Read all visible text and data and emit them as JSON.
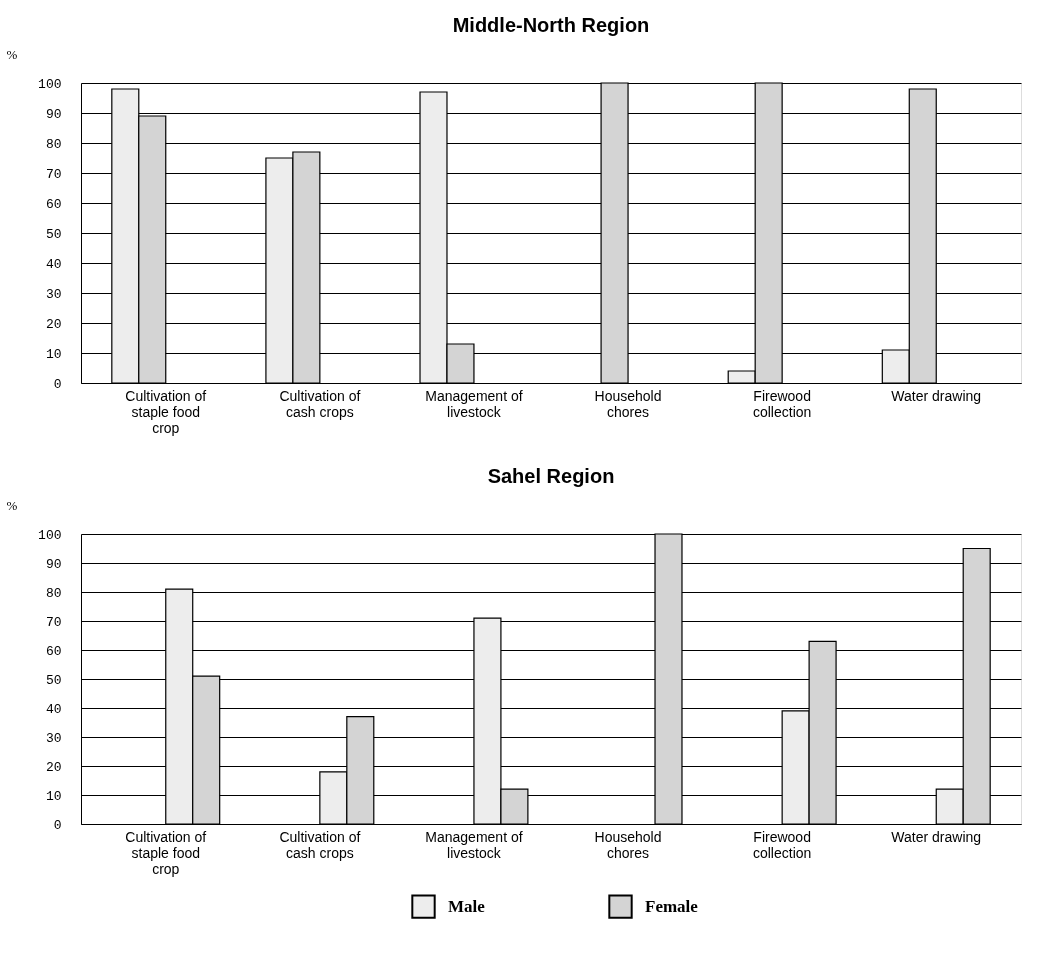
{
  "chart_data": [
    {
      "type": "bar",
      "title": "Middle-North Region",
      "ylabel": "%",
      "categories": [
        "Cultivation of staple food crop",
        "Cultivation of cash crops",
        "Management of livestock",
        "Household chores",
        "Firewood collection",
        "Water drawing"
      ],
      "series": [
        {
          "color": "#ededed",
          "values": [
            98,
            75,
            97,
            0,
            4,
            11
          ]
        },
        {
          "color": "#d4d4d4",
          "values": [
            89,
            77,
            13,
            100,
            100,
            98
          ]
        }
      ],
      "ylim": [
        0,
        100
      ],
      "yticks": [
        0,
        10,
        20,
        30,
        40,
        50,
        60,
        70,
        80,
        90,
        100
      ],
      "grid": "y"
    },
    {
      "type": "bar",
      "title": "Sahel Region",
      "ylabel": "%",
      "categories": [
        "Cultivation of staple food crop",
        "Cultivation of cash crops",
        "Management of livestock",
        "Household chores",
        "Firewood collection",
        "Water drawing"
      ],
      "series": [
        {
          "name": "Male",
          "color": "#ededed",
          "values": [
            81,
            18,
            71,
            0,
            39,
            12
          ]
        },
        {
          "name": "Female",
          "color": "#d4d4d4",
          "values": [
            51,
            37,
            12,
            100,
            63,
            95
          ]
        }
      ],
      "ylim": [
        0,
        100
      ],
      "yticks": [
        0,
        10,
        20,
        30,
        40,
        50,
        60,
        70,
        80,
        90,
        100
      ],
      "grid": "y",
      "legend": "bottom"
    }
  ]
}
